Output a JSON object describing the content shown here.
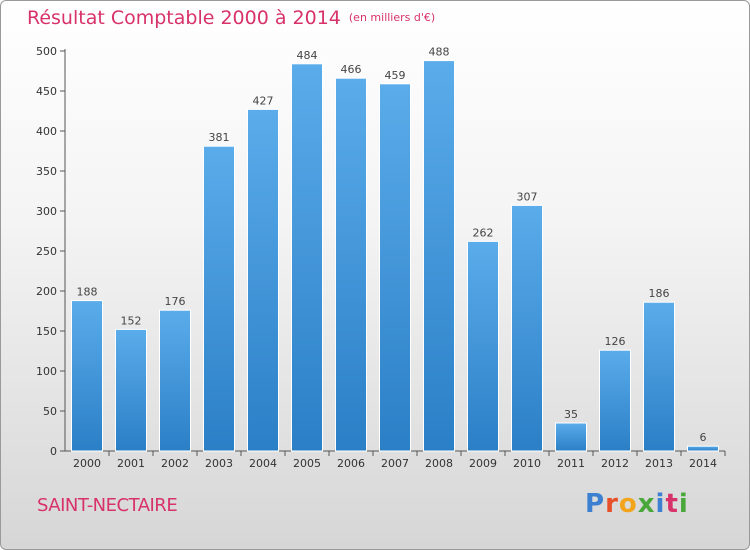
{
  "header": {
    "title": "Résultat Comptable 2000 à 2014",
    "subtitle": "(en milliers d'€)"
  },
  "footer": {
    "commune": "SAINT-NECTAIRE",
    "logo": "Proxiti"
  },
  "colors": {
    "accent": "#d8326a",
    "bar_top": "#5aacea",
    "bar_bottom": "#2b7fc6",
    "logo": [
      "#3d7fd0",
      "#e8502a",
      "#f2a51c",
      "#4aa83b",
      "#3d7fd0",
      "#d8326a",
      "#4aa83b"
    ]
  },
  "chart_data": {
    "type": "bar",
    "title": "Résultat Comptable 2000 à 2014",
    "subtitle": "(en milliers d'€)",
    "xlabel": "",
    "ylabel": "",
    "categories": [
      "2000",
      "2001",
      "2002",
      "2003",
      "2004",
      "2005",
      "2006",
      "2007",
      "2008",
      "2009",
      "2010",
      "2011",
      "2012",
      "2013",
      "2014"
    ],
    "values": [
      188,
      152,
      176,
      381,
      427,
      484,
      466,
      459,
      488,
      262,
      307,
      35,
      126,
      186,
      6
    ],
    "ylim": [
      0,
      500
    ],
    "yticks": [
      0,
      50,
      100,
      150,
      200,
      250,
      300,
      350,
      400,
      450,
      500
    ],
    "grid": false,
    "data_labels": true
  }
}
